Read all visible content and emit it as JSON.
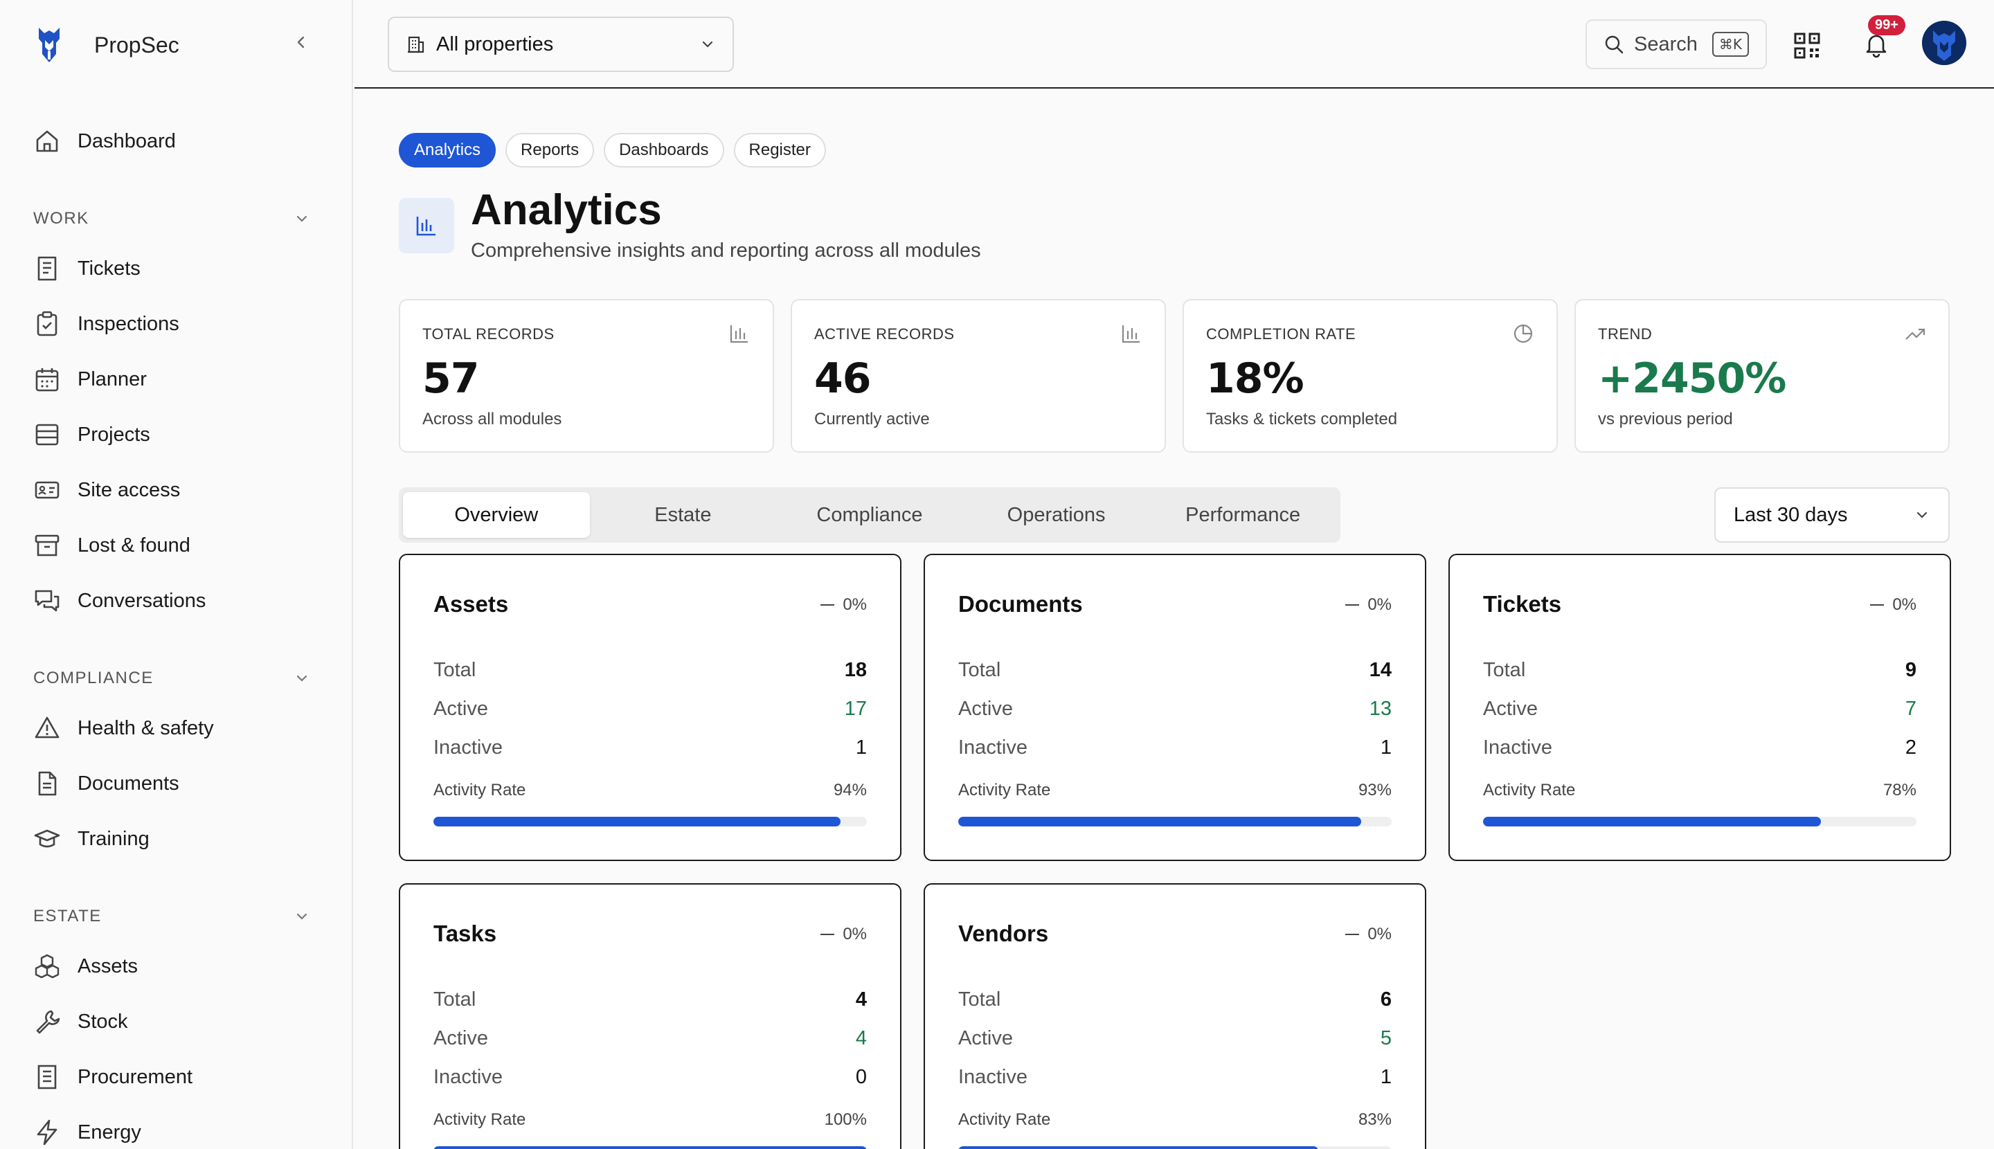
{
  "brand": {
    "name": "PropSec"
  },
  "sidebar": {
    "top": [
      {
        "label": "Dashboard",
        "icon": "home-icon"
      }
    ],
    "sections": [
      {
        "title": "WORK",
        "items": [
          {
            "label": "Tickets",
            "icon": "ticket-icon"
          },
          {
            "label": "Inspections",
            "icon": "clipboard-check-icon"
          },
          {
            "label": "Planner",
            "icon": "calendar-icon"
          },
          {
            "label": "Projects",
            "icon": "projects-icon"
          },
          {
            "label": "Site access",
            "icon": "id-card-icon"
          },
          {
            "label": "Lost & found",
            "icon": "archive-icon"
          },
          {
            "label": "Conversations",
            "icon": "chat-icon"
          }
        ]
      },
      {
        "title": "COMPLIANCE",
        "items": [
          {
            "label": "Health & safety",
            "icon": "warning-icon"
          },
          {
            "label": "Documents",
            "icon": "document-icon"
          },
          {
            "label": "Training",
            "icon": "graduation-cap-icon"
          }
        ]
      },
      {
        "title": "ESTATE",
        "items": [
          {
            "label": "Assets",
            "icon": "boxes-icon"
          },
          {
            "label": "Stock",
            "icon": "wrench-icon"
          },
          {
            "label": "Procurement",
            "icon": "receipt-icon"
          },
          {
            "label": "Energy",
            "icon": "lightning-icon"
          }
        ]
      }
    ]
  },
  "topbar": {
    "property_select": "All properties",
    "search_label": "Search",
    "search_shortcut": "⌘K",
    "notifications_badge": "99+"
  },
  "tabs": [
    "Analytics",
    "Reports",
    "Dashboards",
    "Register"
  ],
  "active_tab": "Analytics",
  "page": {
    "title": "Analytics",
    "subtitle": "Comprehensive insights and reporting across all modules"
  },
  "stats": [
    {
      "label": "TOTAL RECORDS",
      "value": "57",
      "sub": "Across all modules",
      "icon": "bar-chart-icon"
    },
    {
      "label": "ACTIVE RECORDS",
      "value": "46",
      "sub": "Currently active",
      "icon": "bar-chart-icon"
    },
    {
      "label": "COMPLETION RATE",
      "value": "18%",
      "sub": "Tasks & tickets completed",
      "icon": "pie-chart-icon"
    },
    {
      "label": "TREND",
      "value": "+2450%",
      "sub": "vs previous period",
      "icon": "trending-up-icon"
    }
  ],
  "view_tabs": [
    "Overview",
    "Estate",
    "Compliance",
    "Operations",
    "Performance"
  ],
  "active_view": "Overview",
  "range": "Last 30 days",
  "labels": {
    "total": "Total",
    "active": "Active",
    "inactive": "Inactive",
    "activity_rate": "Activity Rate"
  },
  "modules": [
    {
      "name": "Assets",
      "change": "0%",
      "total": "18",
      "active": "17",
      "inactive": "1",
      "rate": "94%",
      "rate_value": 94
    },
    {
      "name": "Documents",
      "change": "0%",
      "total": "14",
      "active": "13",
      "inactive": "1",
      "rate": "93%",
      "rate_value": 93
    },
    {
      "name": "Tickets",
      "change": "0%",
      "total": "9",
      "active": "7",
      "inactive": "2",
      "rate": "78%",
      "rate_value": 78
    },
    {
      "name": "Tasks",
      "change": "0%",
      "total": "4",
      "active": "4",
      "inactive": "0",
      "rate": "100%",
      "rate_value": 100
    },
    {
      "name": "Vendors",
      "change": "0%",
      "total": "6",
      "active": "5",
      "inactive": "1",
      "rate": "83%",
      "rate_value": 83
    }
  ],
  "colors": {
    "accent": "#1e56d6",
    "positive": "#1a7a4c",
    "badge": "#d21f3c"
  }
}
